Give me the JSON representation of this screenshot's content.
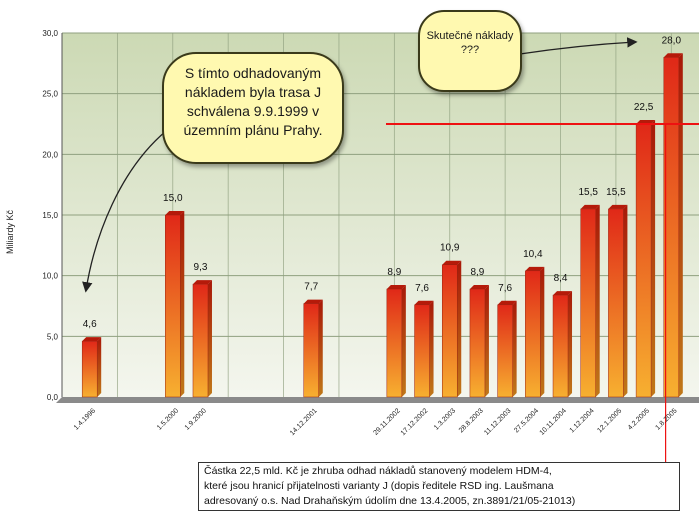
{
  "chart_data": {
    "type": "bar",
    "ylabel": "Miliardy Kč",
    "xlabel": "",
    "ylim": [
      0,
      30
    ],
    "yticks": [
      "0,0",
      "5,0",
      "10,0",
      "15,0",
      "20,0",
      "25,0",
      "30,0"
    ],
    "grid": true,
    "categories": [
      "1.4.1996",
      "1.5.2000",
      "1.9.2000",
      "14.12.2001",
      "29.11.2002",
      "17.12.2002",
      "1.3.2003",
      "28.8.2003",
      "11.12.2003",
      "27.5.2004",
      "10.11.2004",
      "1.12.2004",
      "12.1.2005",
      "4.2.2005",
      "1.8.2005"
    ],
    "x_positions": [
      1,
      4,
      5,
      9,
      12,
      13,
      14,
      15,
      16,
      17,
      18,
      19,
      20,
      21,
      22
    ],
    "x_range": [
      0,
      23
    ],
    "values": [
      4.6,
      15.0,
      9.3,
      7.7,
      8.9,
      7.6,
      10.9,
      8.9,
      7.6,
      10.4,
      8.4,
      15.5,
      15.5,
      22.5,
      28.0
    ],
    "value_labels": [
      "4,6",
      "15,0",
      "9,3",
      "7,7",
      "8,9",
      "7,6",
      "10,9",
      "8,9",
      "7,6",
      "10,4",
      "8,4",
      "15,5",
      "15,5",
      "22,5",
      "28,0"
    ],
    "reference_line_y": 22.5,
    "colors": {
      "plot_bg_top": "#ccd9b4",
      "plot_bg_bottom": "#f4f6ee",
      "bar_top": "#e02818",
      "bar_bottom": "#f7b030",
      "reference_line": "#ee1111",
      "grid": "#8fa07f"
    }
  },
  "annotations": {
    "callout1": "S tímto odhadovaným nákladem byla trasa J schválena 9.9.1999 v územním plánu Prahy.",
    "callout2": "Skutečné náklady ???",
    "footnote": "Částka 22,5 mld. Kč je zhruba odhad nákladů stanovený modelem HDM-4,\nkteré jsou hranicí přijatelnosti varianty J (dopis ředitele RSD ing. Laušmana\nadresovaný o.s. Nad Drahaňským údolím dne 13.4.2005, zn.3891/21/05-21013)"
  }
}
